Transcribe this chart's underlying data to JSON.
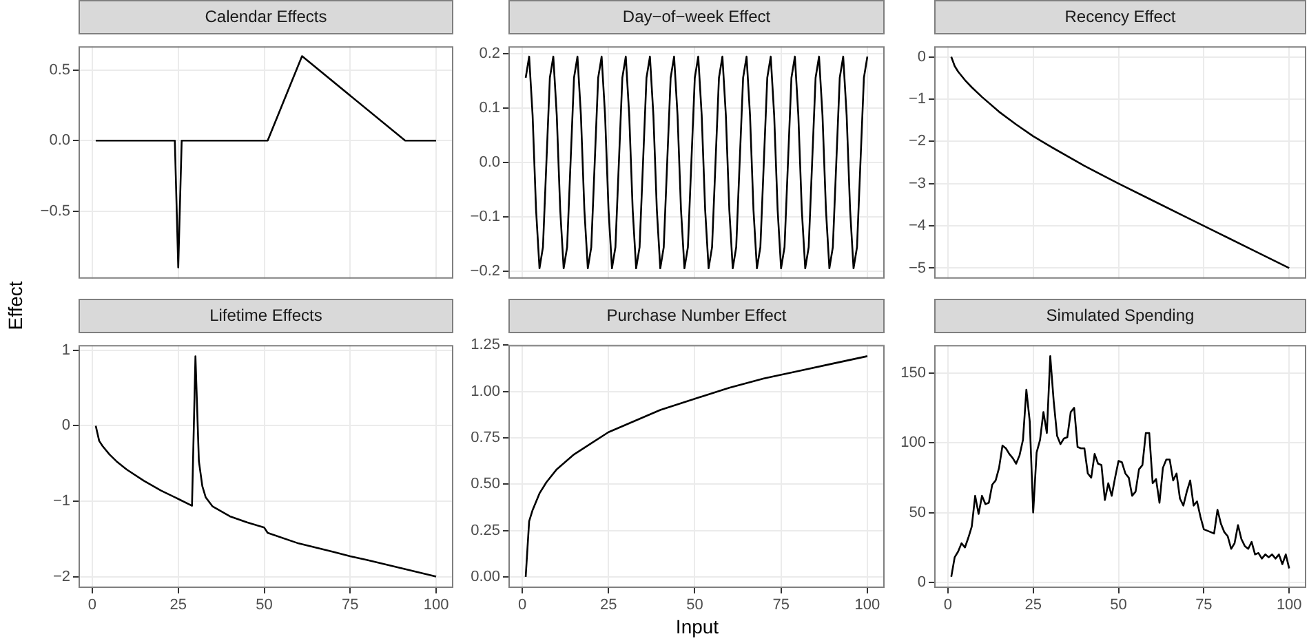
{
  "chart_data": [
    {
      "type": "line",
      "title": "Calendar Effects",
      "color": "#000000",
      "marker": "none",
      "grid": true,
      "tick_labels": "y",
      "x": [
        1,
        24,
        25,
        26,
        51,
        61,
        91,
        100
      ],
      "values": [
        0,
        0,
        -0.9,
        0,
        0,
        0.6,
        0,
        0
      ],
      "xlim": [
        -4,
        105
      ],
      "xticks": [
        0,
        25,
        50,
        75,
        100
      ],
      "ylim": [
        -0.98,
        0.67
      ],
      "yticks": [
        {
          "value": -0.5,
          "label": "−0.5"
        },
        {
          "value": 0,
          "label": "0.0"
        },
        {
          "value": 0.5,
          "label": "0.5"
        }
      ]
    },
    {
      "type": "line",
      "title": "Day−of−week Effect",
      "color": "#000000",
      "marker": "none",
      "grid": true,
      "tick_labels": "y",
      "x": [
        1,
        2,
        3,
        4,
        5,
        6,
        7,
        8,
        9,
        10,
        11,
        12,
        13,
        14,
        15,
        16,
        17,
        18,
        19,
        20,
        21,
        22,
        23,
        24,
        25,
        26,
        27,
        28,
        29,
        30,
        31,
        32,
        33,
        34,
        35,
        36,
        37,
        38,
        39,
        40,
        41,
        42,
        43,
        44,
        45,
        46,
        47,
        48,
        49,
        50,
        51,
        52,
        53,
        54,
        55,
        56,
        57,
        58,
        59,
        60,
        61,
        62,
        63,
        64,
        65,
        66,
        67,
        68,
        69,
        70,
        71,
        72,
        73,
        74,
        75,
        76,
        77,
        78,
        79,
        80,
        81,
        82,
        83,
        84,
        85,
        86,
        87,
        88,
        89,
        90,
        91,
        92,
        93,
        94,
        95,
        96,
        97,
        98,
        99,
        100
      ],
      "values": [
        0.156,
        0.195,
        0.087,
        -0.087,
        -0.195,
        -0.156,
        0,
        0.156,
        0.195,
        0.087,
        -0.087,
        -0.195,
        -0.156,
        0,
        0.156,
        0.195,
        0.087,
        -0.087,
        -0.195,
        -0.156,
        0,
        0.156,
        0.195,
        0.087,
        -0.087,
        -0.195,
        -0.156,
        0,
        0.156,
        0.195,
        0.087,
        -0.087,
        -0.195,
        -0.156,
        0,
        0.156,
        0.195,
        0.087,
        -0.087,
        -0.195,
        -0.156,
        0,
        0.156,
        0.195,
        0.087,
        -0.087,
        -0.195,
        -0.156,
        0,
        0.156,
        0.195,
        0.087,
        -0.087,
        -0.195,
        -0.156,
        0,
        0.156,
        0.195,
        0.087,
        -0.087,
        -0.195,
        -0.156,
        0,
        0.156,
        0.195,
        0.087,
        -0.087,
        -0.195,
        -0.156,
        0,
        0.156,
        0.195,
        0.087,
        -0.087,
        -0.195,
        -0.156,
        0,
        0.156,
        0.195,
        0.087,
        -0.087,
        -0.195,
        -0.156,
        0,
        0.156,
        0.195,
        0.087,
        -0.087,
        -0.195,
        -0.156,
        0,
        0.156,
        0.195,
        0.087,
        -0.087,
        -0.195,
        -0.156,
        0,
        0.156,
        0.195
      ],
      "xlim": [
        -4,
        105
      ],
      "xticks": [
        0,
        25,
        50,
        75,
        100
      ],
      "ylim": [
        -0.214,
        0.214
      ],
      "yticks": [
        {
          "value": -0.2,
          "label": "−0.2"
        },
        {
          "value": -0.1,
          "label": "−0.1"
        },
        {
          "value": 0,
          "label": "0.0"
        },
        {
          "value": 0.1,
          "label": "0.1"
        },
        {
          "value": 0.2,
          "label": "0.2"
        }
      ]
    },
    {
      "type": "line",
      "title": "Recency Effect",
      "color": "#000000",
      "marker": "none",
      "grid": true,
      "tick_labels": "y",
      "x": [
        1,
        2,
        3,
        5,
        7,
        10,
        15,
        20,
        25,
        30,
        40,
        50,
        60,
        70,
        80,
        90,
        100
      ],
      "values": [
        0,
        -0.22,
        -0.35,
        -0.55,
        -0.72,
        -0.95,
        -1.3,
        -1.6,
        -1.88,
        -2.12,
        -2.58,
        -3.0,
        -3.4,
        -3.8,
        -4.2,
        -4.6,
        -5.0
      ],
      "xlim": [
        -4,
        105
      ],
      "xticks": [
        0,
        25,
        50,
        75,
        100
      ],
      "ylim": [
        -5.25,
        0.25
      ],
      "yticks": [
        {
          "value": -5,
          "label": "−5"
        },
        {
          "value": -4,
          "label": "−4"
        },
        {
          "value": -3,
          "label": "−3"
        },
        {
          "value": -2,
          "label": "−2"
        },
        {
          "value": -1,
          "label": "−1"
        },
        0
      ]
    },
    {
      "type": "line",
      "title": "Lifetime Effects",
      "ylabel": "Effect",
      "color": "#000000",
      "marker": "none",
      "grid": true,
      "x": [
        1,
        2,
        3,
        5,
        7,
        10,
        15,
        20,
        25,
        29,
        30,
        31,
        32,
        33,
        35,
        40,
        45,
        50,
        51,
        60,
        70,
        75,
        80,
        90,
        100
      ],
      "values": [
        0,
        -0.2,
        -0.27,
        -0.38,
        -0.47,
        -0.58,
        -0.73,
        -0.86,
        -0.97,
        -1.06,
        0.92,
        -0.47,
        -0.8,
        -0.95,
        -1.07,
        -1.2,
        -1.28,
        -1.35,
        -1.42,
        -1.56,
        -1.67,
        -1.73,
        -1.78,
        -1.89,
        -2.0
      ],
      "xlim": [
        -4,
        105
      ],
      "xticks": [
        0,
        25,
        50,
        75,
        100
      ],
      "ylim": [
        -2.15,
        1.07
      ],
      "yticks": [
        {
          "value": -2,
          "label": "−2"
        },
        {
          "value": -1,
          "label": "−1"
        },
        0,
        1
      ]
    },
    {
      "type": "line",
      "title": "Purchase Number Effect",
      "xlabel": "Input",
      "color": "#000000",
      "marker": "none",
      "grid": true,
      "x": [
        1,
        2,
        3,
        5,
        7,
        10,
        15,
        20,
        25,
        30,
        40,
        50,
        60,
        70,
        80,
        90,
        100
      ],
      "values": [
        0,
        0.3,
        0.36,
        0.45,
        0.51,
        0.58,
        0.66,
        0.72,
        0.78,
        0.82,
        0.9,
        0.96,
        1.02,
        1.07,
        1.11,
        1.15,
        1.19
      ],
      "xlim": [
        -4,
        105
      ],
      "xticks": [
        0,
        25,
        50,
        75,
        100
      ],
      "ylim": [
        -0.06,
        1.25
      ],
      "yticks": [
        {
          "value": 0,
          "label": "0.00"
        },
        {
          "value": 0.25,
          "label": "0.25"
        },
        {
          "value": 0.5,
          "label": "0.50"
        },
        {
          "value": 0.75,
          "label": "0.75"
        },
        {
          "value": 1,
          "label": "1.00"
        },
        {
          "value": 1.25,
          "label": "1.25"
        }
      ]
    },
    {
      "type": "line",
      "title": "Simulated Spending",
      "color": "#000000",
      "marker": "none",
      "grid": true,
      "x": [
        1,
        2,
        3,
        4,
        5,
        6,
        7,
        8,
        9,
        10,
        11,
        12,
        13,
        14,
        15,
        16,
        17,
        18,
        19,
        20,
        21,
        22,
        23,
        24,
        25,
        26,
        27,
        28,
        29,
        30,
        31,
        32,
        33,
        34,
        35,
        36,
        37,
        38,
        39,
        40,
        41,
        42,
        43,
        44,
        45,
        46,
        47,
        48,
        49,
        50,
        51,
        52,
        53,
        54,
        55,
        56,
        57,
        58,
        59,
        60,
        61,
        62,
        63,
        64,
        65,
        66,
        67,
        68,
        69,
        70,
        71,
        72,
        73,
        74,
        75,
        76,
        77,
        78,
        79,
        80,
        81,
        82,
        83,
        84,
        85,
        86,
        87,
        88,
        89,
        90,
        91,
        92,
        93,
        94,
        95,
        96,
        97,
        98,
        99,
        100
      ],
      "values": [
        4,
        18,
        22,
        28,
        25,
        32,
        40,
        62,
        49,
        62,
        56,
        57,
        70,
        73,
        82,
        98,
        96,
        92,
        89,
        85,
        91,
        102,
        138,
        115,
        50,
        93,
        102,
        122,
        107,
        162,
        130,
        105,
        99,
        103,
        104,
        122,
        125,
        97,
        96,
        96,
        78,
        75,
        92,
        85,
        84,
        59,
        71,
        62,
        75,
        87,
        86,
        78,
        75,
        62,
        65,
        81,
        84,
        107,
        107,
        71,
        74,
        57,
        82,
        88,
        88,
        73,
        78,
        60,
        55,
        65,
        73,
        55,
        58,
        47,
        38,
        37,
        36,
        35,
        52,
        42,
        36,
        33,
        24,
        28,
        41,
        31,
        26,
        24,
        29,
        20,
        21,
        17,
        20,
        18,
        20,
        17,
        20,
        13,
        20,
        10
      ],
      "xlim": [
        -4,
        105
      ],
      "xticks": [
        0,
        25,
        50,
        75,
        100
      ],
      "ylim": [
        -4,
        170
      ],
      "yticks": [
        0,
        50,
        100,
        150
      ]
    }
  ]
}
